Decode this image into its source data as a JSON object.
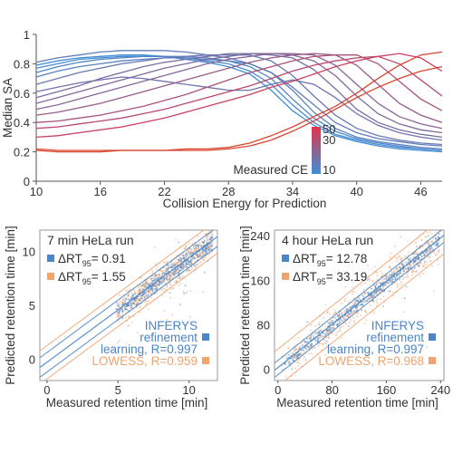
{
  "colors": {
    "low": "#3f8fd6",
    "high": "#e2334a",
    "infer": "#4a86c8",
    "lowess": "#f0a36e",
    "axis": "#555555"
  },
  "chart_data": [
    {
      "type": "line",
      "xlabel": "Collision Energy for Prediction",
      "ylabel": "Median SA",
      "xlim": [
        10,
        48
      ],
      "ylim": [
        0,
        1
      ],
      "xticks": [
        "10",
        "16",
        "22",
        "28",
        "34",
        "40",
        "46"
      ],
      "yticks": [
        "0",
        "0.2",
        "0.4",
        "0.6",
        "0.8",
        "1"
      ],
      "x": [
        10,
        12,
        14,
        16,
        18,
        20,
        22,
        24,
        26,
        28,
        30,
        32,
        34,
        36,
        38,
        40,
        42,
        44,
        46,
        48
      ],
      "colorbar": {
        "label": "Measured CE",
        "ticks": [
          "50",
          "30",
          "10"
        ],
        "range": [
          10,
          50
        ]
      },
      "series": [
        {
          "ce": 10,
          "values": [
            0.79,
            0.82,
            0.84,
            0.85,
            0.86,
            0.86,
            0.85,
            0.83,
            0.81,
            0.78,
            0.73,
            0.62,
            0.48,
            0.38,
            0.31,
            0.27,
            0.24,
            0.22,
            0.21,
            0.2
          ]
        },
        {
          "ce": 12,
          "values": [
            0.77,
            0.8,
            0.83,
            0.84,
            0.85,
            0.85,
            0.85,
            0.84,
            0.82,
            0.8,
            0.75,
            0.66,
            0.52,
            0.4,
            0.32,
            0.28,
            0.25,
            0.23,
            0.22,
            0.21
          ]
        },
        {
          "ce": 14,
          "values": [
            0.74,
            0.78,
            0.81,
            0.83,
            0.84,
            0.85,
            0.85,
            0.85,
            0.84,
            0.82,
            0.78,
            0.7,
            0.56,
            0.43,
            0.34,
            0.29,
            0.26,
            0.24,
            0.22,
            0.21
          ]
        },
        {
          "ce": 16,
          "values": [
            0.71,
            0.75,
            0.78,
            0.8,
            0.82,
            0.83,
            0.84,
            0.84,
            0.83,
            0.82,
            0.8,
            0.74,
            0.62,
            0.47,
            0.36,
            0.3,
            0.27,
            0.25,
            0.23,
            0.22
          ]
        },
        {
          "ce": 18,
          "values": [
            0.81,
            0.84,
            0.86,
            0.88,
            0.89,
            0.89,
            0.89,
            0.88,
            0.86,
            0.84,
            0.8,
            0.74,
            0.64,
            0.52,
            0.4,
            0.33,
            0.29,
            0.27,
            0.25,
            0.24
          ]
        },
        {
          "ce": 20,
          "values": [
            0.66,
            0.7,
            0.74,
            0.77,
            0.8,
            0.82,
            0.84,
            0.85,
            0.86,
            0.86,
            0.86,
            0.82,
            0.72,
            0.58,
            0.45,
            0.36,
            0.31,
            0.28,
            0.26,
            0.25
          ]
        },
        {
          "ce": 22,
          "values": [
            0.61,
            0.64,
            0.67,
            0.69,
            0.71,
            0.7,
            0.68,
            0.66,
            0.64,
            0.62,
            0.62,
            0.66,
            0.69,
            0.66,
            0.57,
            0.46,
            0.38,
            0.33,
            0.3,
            0.28
          ]
        },
        {
          "ce": 24,
          "values": [
            0.57,
            0.61,
            0.65,
            0.7,
            0.74,
            0.78,
            0.81,
            0.83,
            0.85,
            0.87,
            0.87,
            0.86,
            0.84,
            0.76,
            0.63,
            0.49,
            0.4,
            0.35,
            0.32,
            0.3
          ]
        },
        {
          "ce": 26,
          "values": [
            0.53,
            0.57,
            0.61,
            0.65,
            0.69,
            0.73,
            0.77,
            0.8,
            0.83,
            0.85,
            0.87,
            0.87,
            0.86,
            0.82,
            0.72,
            0.58,
            0.46,
            0.39,
            0.35,
            0.33
          ]
        },
        {
          "ce": 28,
          "values": [
            0.49,
            0.52,
            0.56,
            0.6,
            0.64,
            0.68,
            0.72,
            0.76,
            0.8,
            0.83,
            0.85,
            0.87,
            0.87,
            0.86,
            0.79,
            0.66,
            0.53,
            0.44,
            0.39,
            0.36
          ]
        },
        {
          "ce": 32,
          "values": [
            0.45,
            0.47,
            0.5,
            0.53,
            0.57,
            0.61,
            0.65,
            0.69,
            0.73,
            0.77,
            0.81,
            0.84,
            0.86,
            0.87,
            0.86,
            0.79,
            0.66,
            0.53,
            0.45,
            0.4
          ]
        },
        {
          "ce": 36,
          "values": [
            0.4,
            0.41,
            0.43,
            0.45,
            0.48,
            0.51,
            0.55,
            0.59,
            0.64,
            0.69,
            0.74,
            0.78,
            0.82,
            0.85,
            0.86,
            0.86,
            0.8,
            0.68,
            0.56,
            0.48
          ]
        },
        {
          "ce": 40,
          "values": [
            0.36,
            0.37,
            0.39,
            0.41,
            0.43,
            0.46,
            0.49,
            0.53,
            0.57,
            0.61,
            0.65,
            0.7,
            0.75,
            0.79,
            0.82,
            0.84,
            0.85,
            0.8,
            0.69,
            0.58
          ]
        },
        {
          "ce": 44,
          "values": [
            0.3,
            0.31,
            0.33,
            0.35,
            0.37,
            0.4,
            0.43,
            0.47,
            0.51,
            0.55,
            0.59,
            0.64,
            0.68,
            0.73,
            0.78,
            0.82,
            0.85,
            0.87,
            0.84,
            0.75
          ]
        },
        {
          "ce": 48,
          "values": [
            0.22,
            0.21,
            0.21,
            0.21,
            0.21,
            0.21,
            0.21,
            0.22,
            0.22,
            0.23,
            0.26,
            0.31,
            0.37,
            0.44,
            0.51,
            0.6,
            0.7,
            0.79,
            0.86,
            0.88
          ]
        },
        {
          "ce": 50,
          "values": [
            0.21,
            0.2,
            0.2,
            0.2,
            0.21,
            0.21,
            0.21,
            0.21,
            0.21,
            0.22,
            0.24,
            0.28,
            0.34,
            0.41,
            0.49,
            0.57,
            0.64,
            0.7,
            0.75,
            0.78
          ]
        }
      ]
    },
    {
      "type": "scatter",
      "title": "7 min HeLa run",
      "xlabel": "Measured retention time [min]",
      "ylabel": "Predicted retention time [min]",
      "xlim": [
        -0.5,
        12
      ],
      "ylim": [
        -2,
        12
      ],
      "xticks": [
        0,
        5,
        10
      ],
      "yticks": [
        0,
        5,
        10
      ],
      "legend_top": [
        {
          "name": "INFERYS",
          "label_pre": "ΔRT",
          "label_sub": "95",
          "label_post": "= 0.91"
        },
        {
          "name": "LOWESS",
          "label_pre": "ΔRT",
          "label_sub": "95",
          "label_post": "= 1.55"
        }
      ],
      "legend_bottom": [
        {
          "name": "INFERYS",
          "lines": [
            "INFERYS",
            "refinement",
            "learning, R=0.997"
          ]
        },
        {
          "name": "LOWESS",
          "lines": [
            "LOWESS, R=0.959"
          ]
        }
      ],
      "series": [
        {
          "name": "INFERYS",
          "fit": [
            [
              0,
              -0.3
            ],
            [
              11.8,
              11.2
            ]
          ],
          "band": 0.91
        },
        {
          "name": "LOWESS",
          "fit": [
            [
              0,
              -0.3
            ],
            [
              11.8,
              11.2
            ]
          ],
          "band": 1.55
        }
      ],
      "point_range": [
        4.8,
        11.6
      ]
    },
    {
      "type": "scatter",
      "title": "4 hour HeLa run",
      "xlabel": "Measured retention time [min]",
      "ylabel": "Predicted retention time [min]",
      "xlim": [
        -5,
        245
      ],
      "ylim": [
        -20,
        250
      ],
      "xticks": [
        0,
        80,
        160,
        240
      ],
      "yticks": [
        0,
        80,
        160,
        240
      ],
      "legend_top": [
        {
          "name": "INFERYS",
          "label_pre": "ΔRT",
          "label_sub": "95",
          "label_post": "= 12.78"
        },
        {
          "name": "LOWESS",
          "label_pre": "ΔRT",
          "label_sub": "95",
          "label_post": "= 33.19"
        }
      ],
      "legend_bottom": [
        {
          "name": "INFERYS",
          "lines": [
            "INFERYS",
            "refinement",
            "learning, R=0.997"
          ]
        },
        {
          "name": "LOWESS",
          "lines": [
            "LOWESS, R=0.968"
          ]
        }
      ],
      "series": [
        {
          "name": "INFERYS",
          "fit": [
            [
              5,
              8
            ],
            [
              240,
              236
            ]
          ],
          "band": 12.78
        },
        {
          "name": "LOWESS",
          "fit": [
            [
              5,
              8
            ],
            [
              240,
              236
            ]
          ],
          "band": 33.19
        }
      ],
      "point_range": [
        5,
        238
      ]
    }
  ]
}
